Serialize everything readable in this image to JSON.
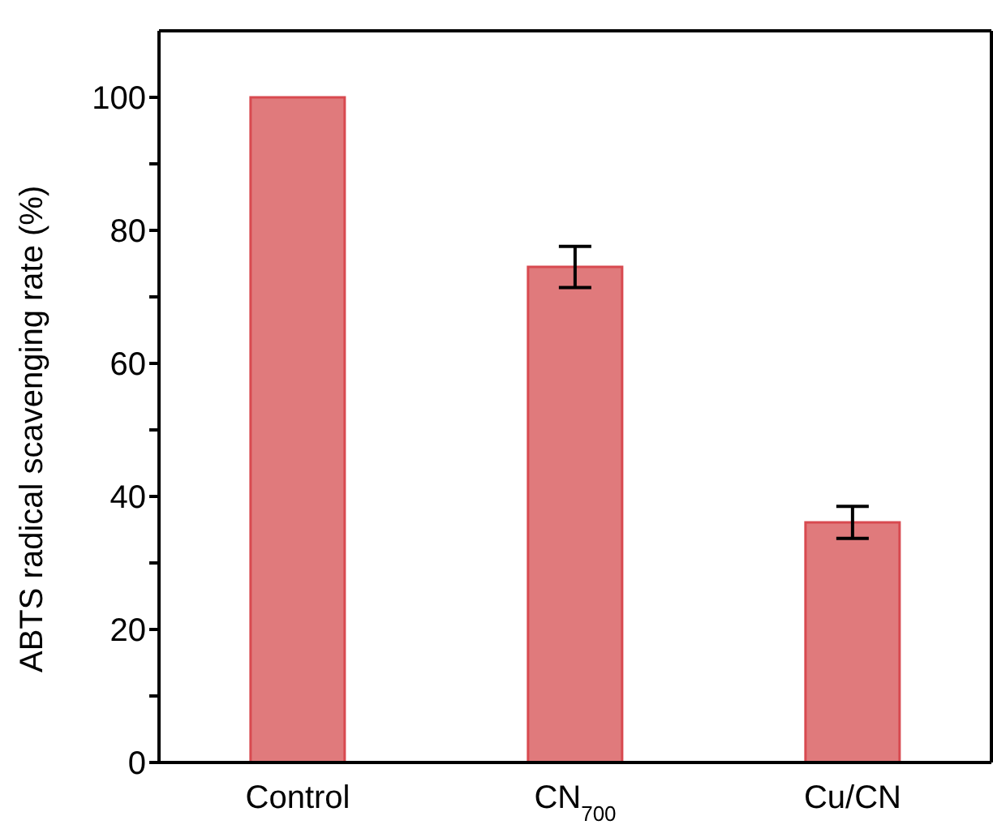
{
  "chart_data": {
    "type": "bar",
    "ylabel": "ABTS radical scavenging rate (%)",
    "categories": [
      "Control",
      "CN$_{700}$",
      "Cu/CN"
    ],
    "values": [
      100,
      74.5,
      36.1
    ],
    "errors": [
      null,
      3.1,
      2.4
    ],
    "color": "#e07a7c",
    "ylim": [
      0,
      110
    ],
    "yticks": [
      0,
      {
        "value": 10,
        "label": null
      },
      20,
      {
        "value": 30,
        "label": null
      },
      40,
      {
        "value": 50,
        "label": null
      },
      60,
      {
        "value": 70,
        "label": null
      },
      80,
      {
        "value": 90,
        "label": null
      },
      100
    ],
    "grid": false
  }
}
